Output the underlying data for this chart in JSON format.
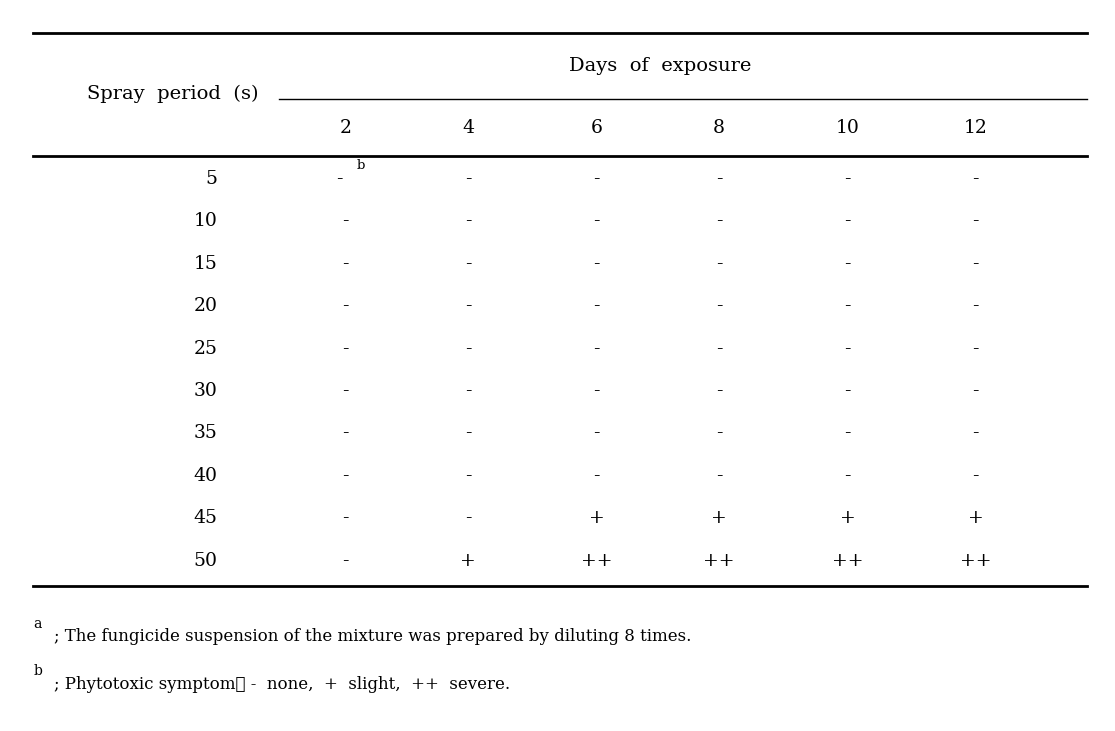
{
  "col_header_top": "Days  of  exposure",
  "col_header_sub": [
    "2",
    "4",
    "6",
    "8",
    "10",
    "12"
  ],
  "row_header_label": "Spray  period  (s)",
  "rows": [
    {
      "spray": "5",
      "values": [
        "-",
        "-",
        "-",
        "-",
        "-",
        "-"
      ],
      "first_superscript": "b"
    },
    {
      "spray": "10",
      "values": [
        "-",
        "-",
        "-",
        "-",
        "-",
        "-"
      ],
      "first_superscript": ""
    },
    {
      "spray": "15",
      "values": [
        "-",
        "-",
        "-",
        "-",
        "-",
        "-"
      ],
      "first_superscript": ""
    },
    {
      "spray": "20",
      "values": [
        "-",
        "-",
        "-",
        "-",
        "-",
        "-"
      ],
      "first_superscript": ""
    },
    {
      "spray": "25",
      "values": [
        "-",
        "-",
        "-",
        "-",
        "-",
        "-"
      ],
      "first_superscript": ""
    },
    {
      "spray": "30",
      "values": [
        "-",
        "-",
        "-",
        "-",
        "-",
        "-"
      ],
      "first_superscript": ""
    },
    {
      "spray": "35",
      "values": [
        "-",
        "-",
        "-",
        "-",
        "-",
        "-"
      ],
      "first_superscript": ""
    },
    {
      "spray": "40",
      "values": [
        "-",
        "-",
        "-",
        "-",
        "-",
        "-"
      ],
      "first_superscript": ""
    },
    {
      "spray": "45",
      "values": [
        "-",
        "-",
        "+",
        "+",
        "+",
        "+"
      ],
      "first_superscript": ""
    },
    {
      "spray": "50",
      "values": [
        "-",
        "+",
        "++",
        "++",
        "++",
        "++"
      ],
      "first_superscript": ""
    }
  ],
  "footnote_a_super": "a",
  "footnote_a_text": "; The fungicide suspension of the mixture was prepared by diluting 8 times.",
  "footnote_b_super": "b",
  "footnote_b_text": "; Phytotoxic symptom： -  none,  +  slight,  ++  severe.",
  "bg_color": "#ffffff",
  "text_color": "#000000",
  "font_size": 13.5,
  "header_font_size": 14,
  "footnote_font_size": 12
}
